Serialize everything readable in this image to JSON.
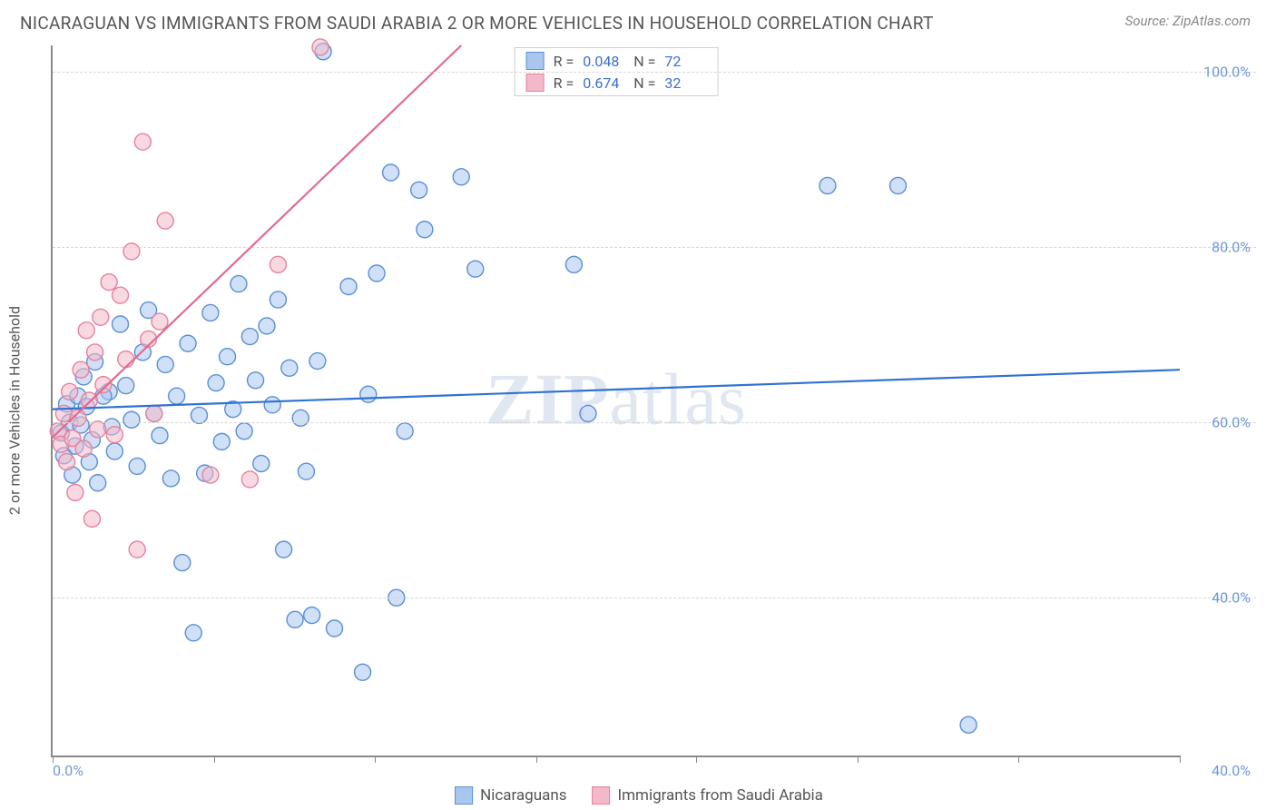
{
  "title": "NICARAGUAN VS IMMIGRANTS FROM SAUDI ARABIA 2 OR MORE VEHICLES IN HOUSEHOLD CORRELATION CHART",
  "source": "Source: ZipAtlas.com",
  "ylabel": "2 or more Vehicles in Household",
  "watermark_a": "ZIP",
  "watermark_b": "atlas",
  "chart": {
    "type": "scatter",
    "xlim": [
      0,
      40
    ],
    "ylim": [
      22,
      103
    ],
    "x_ticks_pct": [
      0,
      14.3,
      28.6,
      42.9,
      57.1,
      71.4,
      85.7,
      100
    ],
    "x_label_min": "0.0%",
    "x_label_max": "40.0%",
    "y_gridlines": [
      40,
      60,
      80,
      100
    ],
    "y_labels": [
      "40.0%",
      "60.0%",
      "80.0%",
      "100.0%"
    ],
    "grid_color": "#d6d6d6",
    "axis_color": "#888888",
    "marker_radius": 9,
    "marker_stroke_w": 1.4,
    "line_w": 2.2,
    "series": [
      {
        "name": "Nicaraguans",
        "fill": "#a9c6ee",
        "stroke": "#5a8fd6",
        "fill_opacity": 0.55,
        "regression": {
          "x1": 0,
          "y1": 61.5,
          "x2": 40,
          "y2": 66.0,
          "color": "#2f72d4"
        },
        "R": "0.048",
        "N": "72",
        "points": [
          [
            0.3,
            58.8
          ],
          [
            0.4,
            56.2
          ],
          [
            0.5,
            62.1
          ],
          [
            0.6,
            60.0
          ],
          [
            0.7,
            54.0
          ],
          [
            0.8,
            57.3
          ],
          [
            0.9,
            63.0
          ],
          [
            1.0,
            59.7
          ],
          [
            1.1,
            65.2
          ],
          [
            1.2,
            61.8
          ],
          [
            1.3,
            55.5
          ],
          [
            1.4,
            58.0
          ],
          [
            1.5,
            66.9
          ],
          [
            1.6,
            53.1
          ],
          [
            2.0,
            63.5
          ],
          [
            2.2,
            56.7
          ],
          [
            2.4,
            71.2
          ],
          [
            2.6,
            64.2
          ],
          [
            2.8,
            60.3
          ],
          [
            3.0,
            55.0
          ],
          [
            3.2,
            68.0
          ],
          [
            3.4,
            72.8
          ],
          [
            3.6,
            61.0
          ],
          [
            3.8,
            58.5
          ],
          [
            4.0,
            66.6
          ],
          [
            4.2,
            53.6
          ],
          [
            4.4,
            63.0
          ],
          [
            4.6,
            44.0
          ],
          [
            4.8,
            69.0
          ],
          [
            5.0,
            36.0
          ],
          [
            5.2,
            60.8
          ],
          [
            5.4,
            54.2
          ],
          [
            5.6,
            72.5
          ],
          [
            5.8,
            64.5
          ],
          [
            6.0,
            57.8
          ],
          [
            6.2,
            67.5
          ],
          [
            6.4,
            61.5
          ],
          [
            6.6,
            75.8
          ],
          [
            6.8,
            59.0
          ],
          [
            7.0,
            69.8
          ],
          [
            7.2,
            64.8
          ],
          [
            7.4,
            55.3
          ],
          [
            7.6,
            71.0
          ],
          [
            7.8,
            62.0
          ],
          [
            8.0,
            74.0
          ],
          [
            8.2,
            45.5
          ],
          [
            8.4,
            66.2
          ],
          [
            8.6,
            37.5
          ],
          [
            8.8,
            60.5
          ],
          [
            9.0,
            54.4
          ],
          [
            9.2,
            38.0
          ],
          [
            9.4,
            67.0
          ],
          [
            9.6,
            102.3
          ],
          [
            10.0,
            36.5
          ],
          [
            10.5,
            75.5
          ],
          [
            11.0,
            31.5
          ],
          [
            11.2,
            63.2
          ],
          [
            11.5,
            77.0
          ],
          [
            12.0,
            88.5
          ],
          [
            12.2,
            40.0
          ],
          [
            12.5,
            59.0
          ],
          [
            13.0,
            86.5
          ],
          [
            13.2,
            82.0
          ],
          [
            14.5,
            88.0
          ],
          [
            15.0,
            77.5
          ],
          [
            18.5,
            78.0
          ],
          [
            19.0,
            61.0
          ],
          [
            27.5,
            87.0
          ],
          [
            30.0,
            87.0
          ],
          [
            32.5,
            25.5
          ],
          [
            1.8,
            63.0
          ],
          [
            2.1,
            59.5
          ]
        ]
      },
      {
        "name": "Immigrants from Saudi Arabia",
        "fill": "#f3b9c8",
        "stroke": "#e7809e",
        "fill_opacity": 0.55,
        "regression": {
          "x1": 0,
          "y1": 58.3,
          "x2": 14.5,
          "y2": 103.0,
          "color": "#e26a8f"
        },
        "R": "0.674",
        "N": "32",
        "points": [
          [
            0.2,
            59.0
          ],
          [
            0.3,
            57.5
          ],
          [
            0.4,
            61.0
          ],
          [
            0.5,
            55.5
          ],
          [
            0.6,
            63.5
          ],
          [
            0.7,
            58.2
          ],
          [
            0.8,
            52.0
          ],
          [
            0.9,
            60.5
          ],
          [
            1.0,
            66.0
          ],
          [
            1.1,
            57.0
          ],
          [
            1.2,
            70.5
          ],
          [
            1.3,
            62.5
          ],
          [
            1.4,
            49.0
          ],
          [
            1.5,
            68.0
          ],
          [
            1.7,
            72.0
          ],
          [
            1.8,
            64.3
          ],
          [
            2.0,
            76.0
          ],
          [
            2.2,
            58.6
          ],
          [
            2.4,
            74.5
          ],
          [
            2.6,
            67.2
          ],
          [
            2.8,
            79.5
          ],
          [
            3.0,
            45.5
          ],
          [
            3.2,
            92.0
          ],
          [
            3.4,
            69.5
          ],
          [
            3.6,
            61.0
          ],
          [
            3.8,
            71.5
          ],
          [
            4.0,
            83.0
          ],
          [
            5.6,
            54.0
          ],
          [
            7.0,
            53.5
          ],
          [
            8.0,
            78.0
          ],
          [
            9.5,
            102.8
          ],
          [
            1.6,
            59.2
          ]
        ]
      }
    ]
  },
  "legend": [
    {
      "label": "Nicaraguans",
      "fill": "#a9c6ee",
      "stroke": "#5a8fd6"
    },
    {
      "label": "Immigrants from Saudi Arabia",
      "fill": "#f3b9c8",
      "stroke": "#e7809e"
    }
  ]
}
